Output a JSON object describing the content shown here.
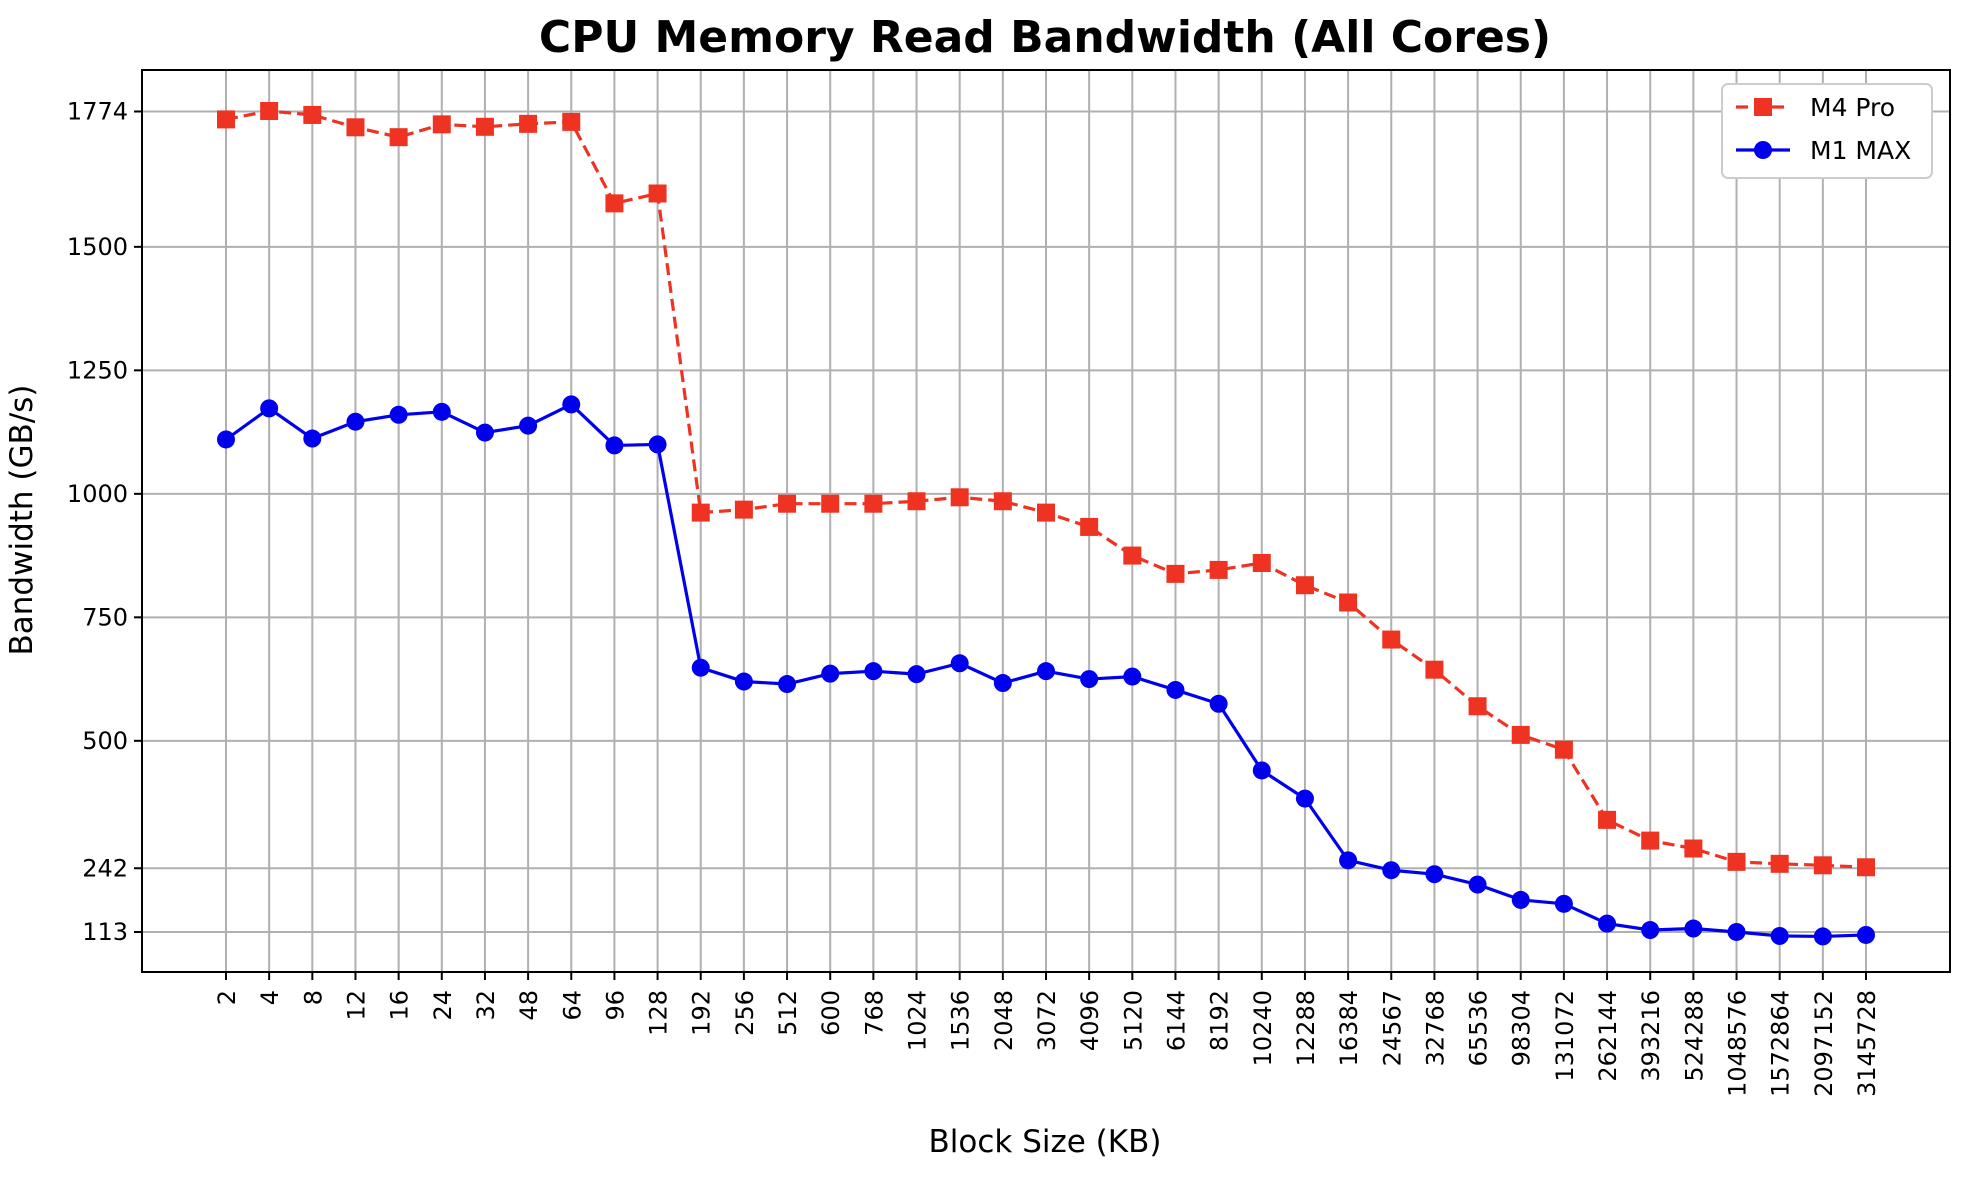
{
  "chart_data": {
    "type": "line",
    "title": "CPU Memory Read Bandwidth (All Cores)",
    "xlabel": "Block Size (KB)",
    "ylabel": "Bandwidth (GB/s)",
    "categories": [
      "2",
      "4",
      "8",
      "12",
      "16",
      "24",
      "32",
      "48",
      "64",
      "96",
      "128",
      "192",
      "256",
      "512",
      "600",
      "768",
      "1024",
      "1536",
      "2048",
      "3072",
      "4096",
      "5120",
      "6144",
      "8192",
      "10240",
      "12288",
      "16384",
      "24567",
      "32768",
      "65536",
      "98304",
      "131072",
      "262144",
      "393216",
      "524288",
      "1048576",
      "1572864",
      "2097152",
      "3145728"
    ],
    "yticks": [
      113,
      242,
      500,
      750,
      1000,
      1250,
      1500,
      1774
    ],
    "ylim": [
      32,
      1858
    ],
    "grid": true,
    "legend_position": "top-right",
    "series": [
      {
        "name": "M4 Pro",
        "color": "#ee3322",
        "line_style": "dashed",
        "marker": "square",
        "values": [
          1758,
          1775,
          1767,
          1742,
          1722,
          1748,
          1743,
          1749,
          1753,
          1588,
          1608,
          962,
          968,
          980,
          980,
          980,
          985,
          993,
          985,
          962,
          933,
          875,
          838,
          846,
          860,
          815,
          780,
          705,
          644,
          570,
          512,
          482,
          340,
          298,
          282,
          255,
          251,
          248,
          244
        ]
      },
      {
        "name": "M1 MAX",
        "color": "#0000ee",
        "line_style": "solid",
        "marker": "circle",
        "values": [
          1110,
          1173,
          1112,
          1146,
          1160,
          1166,
          1124,
          1138,
          1181,
          1098,
          1100,
          648,
          620,
          615,
          636,
          641,
          635,
          657,
          617,
          641,
          625,
          630,
          603,
          575,
          440,
          383,
          258,
          238,
          230,
          209,
          178,
          170,
          130,
          117,
          120,
          113,
          105,
          104,
          107
        ]
      }
    ]
  }
}
